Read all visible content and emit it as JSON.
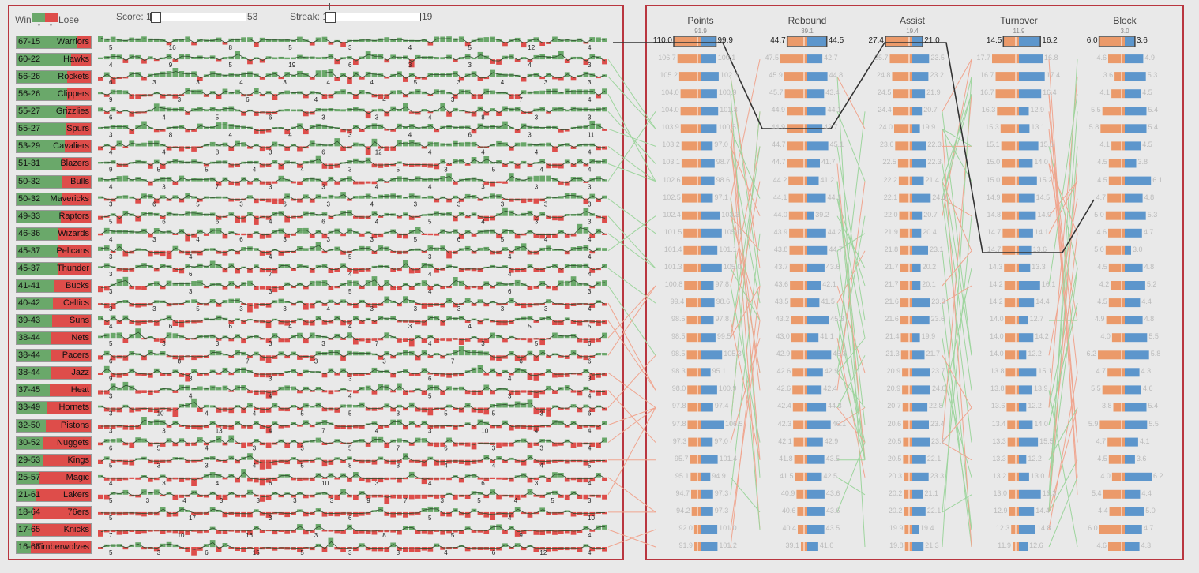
{
  "legend": {
    "win": "Win",
    "lose": "Lose"
  },
  "filters": {
    "score": {
      "label": "Score: 1",
      "max": "53",
      "value": 0.0
    },
    "streak": {
      "label": "Streak: 1",
      "max": "19",
      "value": 0.0
    }
  },
  "colors": {
    "win": "#6aa86a",
    "lose": "#de4d4a",
    "orange": "#eb9a6a",
    "blue": "#5d96cc",
    "selectBorder": "#444444"
  },
  "teams": [
    {
      "record": "67-15",
      "name": "Warriors",
      "wins": 67,
      "losses": 15,
      "labels": [
        "5",
        "16",
        "8",
        "5",
        "3",
        "4",
        "5",
        "12",
        "4"
      ]
    },
    {
      "record": "60-22",
      "name": "Hawks",
      "wins": 60,
      "losses": 22,
      "labels": [
        "4",
        "9",
        "5",
        "19",
        "6",
        "3",
        "3",
        "4",
        "3"
      ]
    },
    {
      "record": "56-26",
      "name": "Rockets",
      "wins": 56,
      "losses": 26,
      "labels": [
        "6",
        "3",
        "3",
        "4",
        "3",
        "4",
        "4",
        "5",
        "3",
        "4",
        "3",
        "3"
      ]
    },
    {
      "record": "56-26",
      "name": "Clippers",
      "wins": 56,
      "losses": 26,
      "labels": [
        "9",
        "3",
        "6",
        "4",
        "4",
        "3",
        "7",
        "4"
      ]
    },
    {
      "record": "55-27",
      "name": "Grizzlies",
      "wins": 55,
      "losses": 27,
      "labels": [
        "6",
        "4",
        "5",
        "6",
        "3",
        "3",
        "4",
        "8",
        "3",
        "3"
      ]
    },
    {
      "record": "55-27",
      "name": "Spurs",
      "wins": 55,
      "losses": 27,
      "labels": [
        "3",
        "8",
        "4",
        "4",
        "3",
        "4",
        "6",
        "3",
        "11"
      ]
    },
    {
      "record": "53-29",
      "name": "Cavaliers",
      "wins": 53,
      "losses": 29,
      "labels": [
        "4",
        "4",
        "8",
        "3",
        "6",
        "12",
        "4",
        "4",
        "4",
        "4"
      ]
    },
    {
      "record": "51-31",
      "name": "Blazers",
      "wins": 51,
      "losses": 31,
      "labels": [
        "9",
        "5",
        "5",
        "4",
        "4",
        "3",
        "5",
        "3",
        "5",
        "4",
        "4"
      ]
    },
    {
      "record": "50-32",
      "name": "Bulls",
      "wins": 50,
      "losses": 32,
      "labels": [
        "4",
        "3",
        "7",
        "3",
        "3",
        "4",
        "4",
        "3",
        "3",
        "3"
      ]
    },
    {
      "record": "50-32",
      "name": "Mavericks",
      "wins": 50,
      "losses": 32,
      "labels": [
        "3",
        "6",
        "5",
        "3",
        "6",
        "3",
        "4",
        "3",
        "3",
        "3",
        "3",
        "3"
      ]
    },
    {
      "record": "49-33",
      "name": "Raptors",
      "wins": 49,
      "losses": 33,
      "labels": [
        "5",
        "6",
        "6",
        "4",
        "6",
        "4",
        "5",
        "4",
        "3",
        "3"
      ]
    },
    {
      "record": "46-36",
      "name": "Wizards",
      "wins": 46,
      "losses": 36,
      "labels": [
        "4",
        "3",
        "4",
        "6",
        "3",
        "3",
        "3",
        "5",
        "6",
        "5",
        "4",
        "4"
      ]
    },
    {
      "record": "45-37",
      "name": "Pelicans",
      "wins": 45,
      "losses": 37,
      "labels": [
        "3",
        "4",
        "4",
        "5",
        "3",
        "4",
        "4"
      ]
    },
    {
      "record": "45-37",
      "name": "Thunder",
      "wins": 45,
      "losses": 37,
      "labels": [
        "3",
        "6",
        "7",
        "4",
        "4",
        "4",
        "4"
      ]
    },
    {
      "record": "41-41",
      "name": "Bucks",
      "wins": 41,
      "losses": 41,
      "labels": [
        "3",
        "3",
        "3",
        "5",
        "4",
        "6",
        "3"
      ]
    },
    {
      "record": "40-42",
      "name": "Celtics",
      "wins": 40,
      "losses": 42,
      "labels": [
        "3",
        "3",
        "5",
        "3",
        "3",
        "4",
        "3",
        "3",
        "3",
        "3",
        "3",
        "4"
      ]
    },
    {
      "record": "39-43",
      "name": "Suns",
      "wins": 39,
      "losses": 43,
      "labels": [
        "4",
        "6",
        "6",
        "4",
        "4",
        "3",
        "4",
        "5",
        "5"
      ]
    },
    {
      "record": "38-44",
      "name": "Nets",
      "wins": 38,
      "losses": 44,
      "labels": [
        "5",
        "3",
        "3",
        "3",
        "3",
        "7",
        "4",
        "3",
        "5",
        "6"
      ]
    },
    {
      "record": "38-44",
      "name": "Pacers",
      "wins": 38,
      "losses": 44,
      "labels": [
        "6",
        "8",
        "7",
        "3",
        "3",
        "7",
        "6",
        "6"
      ]
    },
    {
      "record": "38-44",
      "name": "Jazz",
      "wins": 38,
      "losses": 44,
      "labels": [
        "9",
        "3",
        "3",
        "3",
        "6",
        "4",
        "3"
      ]
    },
    {
      "record": "37-45",
      "name": "Heat",
      "wins": 37,
      "losses": 45,
      "labels": [
        "3",
        "4",
        "4",
        "4",
        "5",
        "3",
        "4"
      ]
    },
    {
      "record": "33-49",
      "name": "Hornets",
      "wins": 33,
      "losses": 49,
      "labels": [
        "3",
        "10",
        "4",
        "4",
        "5",
        "5",
        "3",
        "5",
        "5",
        "3",
        "6"
      ]
    },
    {
      "record": "32-50",
      "name": "Pistons",
      "wins": 32,
      "losses": 50,
      "labels": [
        "3",
        "3",
        "13",
        "4",
        "7",
        "4",
        "3",
        "10",
        "4",
        "4"
      ]
    },
    {
      "record": "30-52",
      "name": "Nuggets",
      "wins": 30,
      "losses": 52,
      "labels": [
        "6",
        "5",
        "4",
        "3",
        "3",
        "5",
        "7",
        "6",
        "3",
        "3",
        "4"
      ]
    },
    {
      "record": "29-53",
      "name": "Kings",
      "wins": 29,
      "losses": 53,
      "labels": [
        "5",
        "3",
        "3",
        "4",
        "5",
        "8",
        "3",
        "4",
        "4",
        "4",
        "5"
      ]
    },
    {
      "record": "25-57",
      "name": "Magic",
      "wins": 25,
      "losses": 57,
      "labels": [
        "4",
        "3",
        "4",
        "6",
        "10",
        "3",
        "4",
        "6",
        "3",
        "4"
      ]
    },
    {
      "record": "21-61",
      "name": "Lakers",
      "wins": 21,
      "losses": 61,
      "labels": [
        "5",
        "3",
        "4",
        "3",
        "3",
        "3",
        "3",
        "9",
        "7",
        "3",
        "5",
        "4",
        "5",
        "3"
      ]
    },
    {
      "record": "18-64",
      "name": "76ers",
      "wins": 18,
      "losses": 64,
      "labels": [
        "5",
        "17",
        "3",
        "6",
        "5",
        "4",
        "10"
      ]
    },
    {
      "record": "17-65",
      "name": "Knicks",
      "wins": 17,
      "losses": 65,
      "labels": [
        "7",
        "10",
        "16",
        "3",
        "8",
        "5",
        "9",
        "4"
      ]
    },
    {
      "record": "16-66",
      "name": "Timberwolves",
      "wins": 16,
      "losses": 66,
      "labels": [
        "5",
        "3",
        "6",
        "15",
        "5",
        "3",
        "3",
        "4",
        "6",
        "12",
        "4"
      ]
    }
  ],
  "chart_data": {
    "type": "table",
    "columns": [
      {
        "name": "Points",
        "avg": "91.9",
        "selected": {
          "left": "110.0",
          "right": "99.9"
        },
        "rows": [
          [
            "106.7",
            "100.1"
          ],
          [
            "105.2",
            "102.3"
          ],
          [
            "104.0",
            "100.9"
          ],
          [
            "104.0",
            "101.8"
          ],
          [
            "103.9",
            "100.5"
          ],
          [
            "103.2",
            "97.0"
          ],
          [
            "103.1",
            "98.7"
          ],
          [
            "102.6",
            "98.6"
          ],
          [
            "102.5",
            "97.1"
          ],
          [
            "102.4",
            "103.3"
          ],
          [
            "101.5",
            "105.0"
          ],
          [
            "101.4",
            "101.1"
          ],
          [
            "101.3",
            "105.0"
          ],
          [
            "100.8",
            "97.8"
          ],
          [
            "99.4",
            "98.6"
          ],
          [
            "98.5",
            "97.8"
          ],
          [
            "98.5",
            "99.5"
          ],
          [
            "98.5",
            "105.3"
          ],
          [
            "98.3",
            "95.1"
          ],
          [
            "98.0",
            "100.9"
          ],
          [
            "97.8",
            "97.4"
          ],
          [
            "97.8",
            "106.5"
          ],
          [
            "97.3",
            "97.0"
          ],
          [
            "95.7",
            "101.4"
          ],
          [
            "95.1",
            "94.9"
          ],
          [
            "94.7",
            "97.3"
          ],
          [
            "94.2",
            "97.3"
          ],
          [
            "92.0",
            "101.0"
          ],
          [
            "91.9",
            "101.2"
          ]
        ]
      },
      {
        "name": "Rebound",
        "avg": "39.1",
        "selected": {
          "left": "44.7",
          "right": "44.5"
        },
        "rows": [
          [
            "47.5",
            "42.7"
          ],
          [
            "45.9",
            "44.8"
          ],
          [
            "45.7",
            "43.4"
          ],
          [
            "44.9",
            "44.1"
          ],
          [
            "44.9",
            "42.7"
          ],
          [
            "44.7",
            "45.1"
          ],
          [
            "44.7",
            "41.7"
          ],
          [
            "44.2",
            "41.2"
          ],
          [
            "44.1",
            "44.1"
          ],
          [
            "44.0",
            "39.2"
          ],
          [
            "43.9",
            "44.2"
          ],
          [
            "43.8",
            "44.7"
          ],
          [
            "43.7",
            "43.6"
          ],
          [
            "43.6",
            "42.1"
          ],
          [
            "43.5",
            "41.5"
          ],
          [
            "43.2",
            "45.3"
          ],
          [
            "43.0",
            "41.1"
          ],
          [
            "42.9",
            "46.3"
          ],
          [
            "42.6",
            "42.9"
          ],
          [
            "42.6",
            "42.4"
          ],
          [
            "42.4",
            "44.3"
          ],
          [
            "42.3",
            "46.1"
          ],
          [
            "42.1",
            "42.9"
          ],
          [
            "41.8",
            "43.5"
          ],
          [
            "41.5",
            "42.5"
          ],
          [
            "40.9",
            "43.6"
          ],
          [
            "40.6",
            "43.6"
          ],
          [
            "40.4",
            "43.5"
          ],
          [
            "39.1",
            "41.0"
          ]
        ]
      },
      {
        "name": "Assist",
        "avg": "19.4",
        "selected": {
          "left": "27.4",
          "right": "21.0"
        },
        "rows": [
          [
            "25.7",
            "23.5"
          ],
          [
            "24.8",
            "23.2"
          ],
          [
            "24.5",
            "21.9"
          ],
          [
            "24.4",
            "20.7"
          ],
          [
            "24.0",
            "19.9"
          ],
          [
            "23.6",
            "22.3"
          ],
          [
            "22.5",
            "22.3"
          ],
          [
            "22.2",
            "21.4"
          ],
          [
            "22.1",
            "24.1"
          ],
          [
            "22.0",
            "20.7"
          ],
          [
            "21.9",
            "20.4"
          ],
          [
            "21.8",
            "23.1"
          ],
          [
            "21.7",
            "20.2"
          ],
          [
            "21.7",
            "20.1"
          ],
          [
            "21.6",
            "23.8"
          ],
          [
            "21.6",
            "23.6"
          ],
          [
            "21.4",
            "19.9"
          ],
          [
            "21.3",
            "21.7"
          ],
          [
            "20.9",
            "23.7"
          ],
          [
            "20.9",
            "24.0"
          ],
          [
            "20.7",
            "22.8"
          ],
          [
            "20.6",
            "23.4"
          ],
          [
            "20.5",
            "23.7"
          ],
          [
            "20.5",
            "22.1"
          ],
          [
            "20.3",
            "23.3"
          ],
          [
            "20.2",
            "21.1"
          ],
          [
            "20.2",
            "22.1"
          ],
          [
            "19.9",
            "19.4"
          ],
          [
            "19.8",
            "21.3"
          ]
        ]
      },
      {
        "name": "Turnover",
        "avg": "11.9",
        "selected": {
          "left": "14.5",
          "right": "16.2"
        },
        "rows": [
          [
            "17.7",
            "16.8"
          ],
          [
            "16.7",
            "17.4"
          ],
          [
            "16.7",
            "16.4"
          ],
          [
            "16.3",
            "12.9"
          ],
          [
            "15.3",
            "13.1"
          ],
          [
            "15.1",
            "15.6"
          ],
          [
            "15.0",
            "14.0"
          ],
          [
            "15.0",
            "15.2"
          ],
          [
            "14.9",
            "14.5"
          ],
          [
            "14.8",
            "14.9"
          ],
          [
            "14.7",
            "14.1"
          ],
          [
            "14.7",
            "13.6"
          ],
          [
            "14.3",
            "13.3"
          ],
          [
            "14.2",
            "16.1"
          ],
          [
            "14.2",
            "14.4"
          ],
          [
            "14.0",
            "12.7"
          ],
          [
            "14.0",
            "14.2"
          ],
          [
            "14.0",
            "12.2"
          ],
          [
            "13.8",
            "15.1"
          ],
          [
            "13.8",
            "13.9"
          ],
          [
            "13.6",
            "12.2"
          ],
          [
            "13.4",
            "14.0"
          ],
          [
            "13.3",
            "15.5"
          ],
          [
            "13.3",
            "12.2"
          ],
          [
            "13.2",
            "13.0"
          ],
          [
            "13.0",
            "16.3"
          ],
          [
            "12.9",
            "14.4"
          ],
          [
            "12.3",
            "14.8"
          ],
          [
            "11.9",
            "12.6"
          ]
        ]
      },
      {
        "name": "Block",
        "avg": "3.0",
        "selected": {
          "left": "6.0",
          "right": "3.6"
        },
        "rows": [
          [
            "4.6",
            "4.9"
          ],
          [
            "3.6",
            "5.3"
          ],
          [
            "4.1",
            "4.5"
          ],
          [
            "5.5",
            "5.4"
          ],
          [
            "5.8",
            "5.4"
          ],
          [
            "4.1",
            "4.5"
          ],
          [
            "4.5",
            "3.8"
          ],
          [
            "4.5",
            "6.1"
          ],
          [
            "4.7",
            "4.8"
          ],
          [
            "5.0",
            "5.3"
          ],
          [
            "4.6",
            "4.7"
          ],
          [
            "5.0",
            "3.0"
          ],
          [
            "4.5",
            "4.8"
          ],
          [
            "4.2",
            "5.2"
          ],
          [
            "4.5",
            "4.4"
          ],
          [
            "4.9",
            "4.8"
          ],
          [
            "4.0",
            "5.5"
          ],
          [
            "6.2",
            "5.8"
          ],
          [
            "4.7",
            "4.3"
          ],
          [
            "5.5",
            "4.6"
          ],
          [
            "3.8",
            "5.4"
          ],
          [
            "5.9",
            "5.5"
          ],
          [
            "4.7",
            "4.1"
          ],
          [
            "4.5",
            "3.6"
          ],
          [
            "4.0",
            "6.2"
          ],
          [
            "5.4",
            "4.4"
          ],
          [
            "4.4",
            "5.0"
          ],
          [
            "6.0",
            "4.7"
          ],
          [
            "4.6",
            "4.3"
          ]
        ]
      }
    ]
  }
}
